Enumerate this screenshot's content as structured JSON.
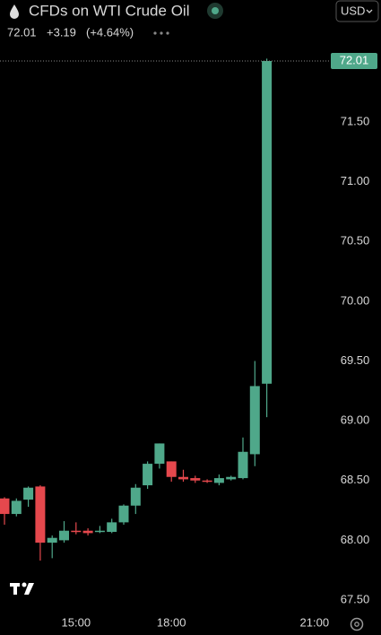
{
  "chart_data": {
    "type": "candlestick",
    "title": "CFDs on WTI Crude Oil",
    "last_price": 72.01,
    "change_label": "+3.19",
    "change_pct_label": "(+4.64%)",
    "currency": "USD",
    "categories": [
      null,
      null,
      null,
      null,
      null,
      null,
      "15:00",
      null,
      null,
      null,
      null,
      null,
      null,
      null,
      "18:00",
      null,
      null,
      null,
      null,
      null,
      null,
      null,
      null,
      null,
      null,
      null,
      "21:00"
    ],
    "open": [
      68.35,
      68.22,
      68.34,
      68.45,
      67.98,
      68.0,
      68.08,
      68.08,
      68.07,
      68.07,
      68.15,
      68.29,
      68.46,
      68.64,
      68.66,
      68.53,
      68.52,
      68.5,
      68.48,
      68.51,
      68.52,
      68.72,
      69.31,
      null,
      null,
      null,
      null
    ],
    "high": [
      68.36,
      68.35,
      68.45,
      68.46,
      68.04,
      68.16,
      68.15,
      68.1,
      68.12,
      68.18,
      68.3,
      68.47,
      68.66,
      68.81,
      68.66,
      68.59,
      68.54,
      68.51,
      68.55,
      68.54,
      68.86,
      69.5,
      72.03,
      null,
      null,
      null,
      null
    ],
    "low": [
      68.13,
      68.2,
      68.28,
      67.83,
      67.85,
      67.98,
      68.05,
      68.04,
      68.06,
      68.06,
      68.13,
      68.22,
      68.43,
      68.6,
      68.49,
      68.49,
      68.48,
      68.48,
      68.46,
      68.5,
      68.51,
      68.62,
      69.03,
      null,
      null,
      null,
      null
    ],
    "close": [
      68.22,
      68.33,
      68.44,
      67.98,
      68.02,
      68.08,
      68.07,
      68.06,
      68.08,
      68.15,
      68.29,
      68.44,
      68.64,
      68.81,
      68.53,
      68.51,
      68.5,
      68.49,
      68.52,
      68.53,
      68.74,
      69.29,
      72.01,
      null,
      null,
      null,
      null
    ],
    "up_color": "#4fa88a",
    "down_color": "#e5484d",
    "ylim": [
      67.38,
      72.07
    ],
    "yticks": [
      {
        "value": 67.5,
        "label": "67.50"
      },
      {
        "value": 68,
        "label": "68.00"
      },
      {
        "value": 68.5,
        "label": "68.50"
      },
      {
        "value": 69,
        "label": "69.00"
      },
      {
        "value": 69.5,
        "label": "69.50"
      },
      {
        "value": 70,
        "label": "70.00"
      },
      {
        "value": 70.5,
        "label": "70.50"
      },
      {
        "value": 71,
        "label": "71.00"
      },
      {
        "value": 71.5,
        "label": "71.50"
      }
    ],
    "grid": false
  }
}
